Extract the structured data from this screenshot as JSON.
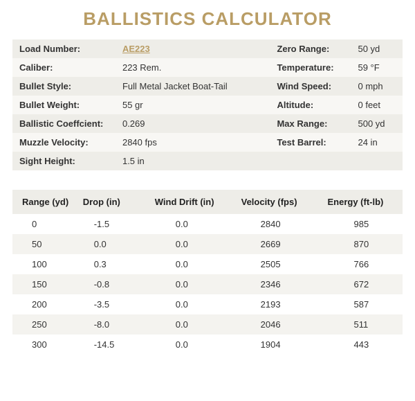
{
  "title": "BALLISTICS CALCULATOR",
  "colors": {
    "accent": "#b99d65",
    "row_odd": "#eeede8",
    "row_even": "#f8f7f4",
    "data_even": "#f4f3ef",
    "text": "#333333",
    "background": "#ffffff"
  },
  "specs_left": [
    {
      "label": "Load Number:",
      "value": "AE223",
      "is_link": true
    },
    {
      "label": "Caliber:",
      "value": "223 Rem."
    },
    {
      "label": "Bullet Style:",
      "value": "Full Metal Jacket Boat-Tail"
    },
    {
      "label": "Bullet Weight:",
      "value": "55 gr"
    },
    {
      "label": "Ballistic Coeffcient:",
      "value": "0.269"
    },
    {
      "label": "Muzzle Velocity:",
      "value": "2840 fps"
    },
    {
      "label": "Sight Height:",
      "value": "1.5 in"
    }
  ],
  "specs_right": [
    {
      "label": "Zero Range:",
      "value": "50 yd"
    },
    {
      "label": "Temperature:",
      "value": "59 °F"
    },
    {
      "label": "Wind Speed:",
      "value": "0 mph"
    },
    {
      "label": "Altitude:",
      "value": "0 feet"
    },
    {
      "label": "Max Range:",
      "value": "500 yd"
    },
    {
      "label": "Test Barrel:",
      "value": "24 in"
    },
    {
      "label": "",
      "value": ""
    }
  ],
  "table": {
    "columns": [
      "Range (yd)",
      "Drop (in)",
      "Wind Drift (in)",
      "Velocity (fps)",
      "Energy (ft-lb)"
    ],
    "rows": [
      [
        "0",
        "-1.5",
        "0.0",
        "2840",
        "985"
      ],
      [
        "50",
        "0.0",
        "0.0",
        "2669",
        "870"
      ],
      [
        "100",
        "0.3",
        "0.0",
        "2505",
        "766"
      ],
      [
        "150",
        "-0.8",
        "0.0",
        "2346",
        "672"
      ],
      [
        "200",
        "-3.5",
        "0.0",
        "2193",
        "587"
      ],
      [
        "250",
        "-8.0",
        "0.0",
        "2046",
        "511"
      ],
      [
        "300",
        "-14.5",
        "0.0",
        "1904",
        "443"
      ]
    ]
  }
}
